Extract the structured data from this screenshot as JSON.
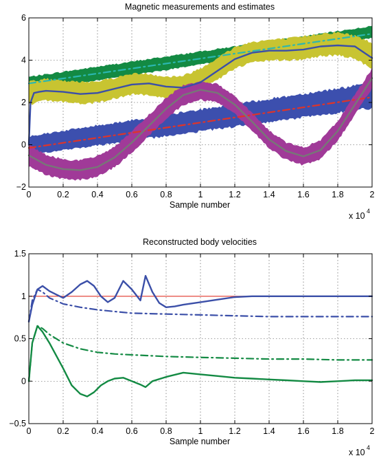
{
  "chart_data": [
    {
      "type": "line",
      "title": "Magnetic measurements and estimates",
      "xlabel": "Sample number",
      "ylabel": "",
      "x_multiplier_label": "x 10",
      "x_multiplier_exponent": "4",
      "xlim": [
        0,
        2
      ],
      "ylim": [
        -2,
        6
      ],
      "xticks": [
        0,
        0.2,
        0.4,
        0.6,
        0.8,
        1,
        1.2,
        1.4,
        1.6,
        1.8,
        2
      ],
      "xtick_labels": [
        "0",
        "0.2",
        "0.4",
        "0.6",
        "0.8",
        "1",
        "1.2",
        "1.4",
        "1.6",
        "1.8",
        "2"
      ],
      "yticks": [
        -2,
        0,
        2,
        4,
        6
      ],
      "ytick_labels": [
        "−2",
        "0",
        "2",
        "4",
        "6"
      ],
      "grid": true,
      "bands": [
        {
          "color": "#138a43",
          "x": [
            0,
            2
          ],
          "lower": [
            2.55,
            5.05
          ],
          "upper": [
            3.2,
            5.6
          ]
        },
        {
          "color": "#c8c431",
          "x": [
            0,
            0.1,
            0.2,
            0.3,
            0.4,
            0.5,
            0.6,
            0.7,
            0.8,
            0.9,
            1.0,
            1.1,
            1.2,
            1.3,
            1.4,
            1.5,
            1.6,
            1.7,
            1.8,
            1.9,
            2.0
          ],
          "lower": [
            1.9,
            2.1,
            2.05,
            1.95,
            2.0,
            2.2,
            2.4,
            2.35,
            2.2,
            2.25,
            2.6,
            3.1,
            3.6,
            3.9,
            4.0,
            4.0,
            4.05,
            4.2,
            4.25,
            4.1,
            3.6
          ],
          "upper": [
            3.0,
            3.1,
            3.0,
            2.95,
            3.0,
            3.15,
            3.35,
            3.35,
            3.2,
            3.25,
            3.6,
            4.1,
            4.6,
            4.85,
            4.95,
            5.0,
            5.1,
            5.25,
            5.3,
            5.15,
            4.8
          ]
        },
        {
          "color": "#3c4fae",
          "x": [
            0,
            2
          ],
          "lower": [
            -0.45,
            1.75
          ],
          "upper": [
            0.4,
            2.9
          ]
        },
        {
          "color": "#a03a98",
          "x": [
            0,
            0.1,
            0.2,
            0.3,
            0.4,
            0.5,
            0.6,
            0.7,
            0.8,
            0.9,
            1.0,
            1.1,
            1.2,
            1.3,
            1.4,
            1.5,
            1.6,
            1.7,
            1.8,
            1.9,
            2.0
          ],
          "lower": [
            -1.0,
            -1.4,
            -1.6,
            -1.65,
            -1.5,
            -1.05,
            -0.35,
            0.45,
            1.25,
            1.9,
            2.15,
            2.0,
            1.5,
            0.7,
            -0.15,
            -0.7,
            -0.95,
            -0.65,
            0.2,
            1.45,
            2.7
          ],
          "upper": [
            0.0,
            -0.5,
            -0.7,
            -0.75,
            -0.55,
            -0.1,
            0.6,
            1.4,
            2.2,
            2.8,
            3.0,
            2.85,
            2.3,
            1.5,
            0.65,
            0.1,
            -0.15,
            0.2,
            1.1,
            2.35,
            3.6
          ]
        }
      ],
      "series": [
        {
          "color": "#2bb7b0",
          "style": "dashdot",
          "x": [
            0,
            2
          ],
          "y": [
            2.9,
            5.25
          ]
        },
        {
          "color": "#e03428",
          "style": "dashdot",
          "x": [
            0,
            2
          ],
          "y": [
            -0.15,
            2.25
          ]
        },
        {
          "color": "#3b4fa8",
          "style": "solid",
          "x": [
            0,
            0.01,
            0.03,
            0.06,
            0.1,
            0.2,
            0.3,
            0.4,
            0.5,
            0.6,
            0.7,
            0.8,
            0.9,
            1.0,
            1.1,
            1.2,
            1.3,
            1.4,
            1.5,
            1.6,
            1.7,
            1.8,
            1.9,
            2.0
          ],
          "y": [
            0.0,
            2.0,
            2.45,
            2.5,
            2.55,
            2.5,
            2.4,
            2.45,
            2.65,
            2.85,
            2.9,
            2.75,
            2.7,
            2.95,
            3.5,
            4.05,
            4.35,
            4.45,
            4.45,
            4.5,
            4.65,
            4.7,
            4.65,
            4.1
          ]
        },
        {
          "color": "#777777",
          "style": "solid",
          "x": [
            0,
            0.1,
            0.2,
            0.3,
            0.4,
            0.5,
            0.6,
            0.7,
            0.8,
            0.9,
            1.0,
            1.1,
            1.2,
            1.3,
            1.4,
            1.5,
            1.6,
            1.7,
            1.8,
            1.9,
            2.0
          ],
          "y": [
            -0.5,
            -0.95,
            -1.15,
            -1.2,
            -1.05,
            -0.6,
            0.1,
            0.9,
            1.7,
            2.35,
            2.6,
            2.45,
            1.9,
            1.1,
            0.25,
            -0.3,
            -0.55,
            -0.25,
            0.65,
            1.9,
            3.15
          ]
        }
      ]
    },
    {
      "type": "line",
      "title": "Reconstructed body velocities",
      "xlabel": "Sample number",
      "ylabel": "",
      "x_multiplier_label": "x 10",
      "x_multiplier_exponent": "4",
      "xlim": [
        0,
        2
      ],
      "ylim": [
        -0.5,
        1.5
      ],
      "xticks": [
        0,
        0.2,
        0.4,
        0.6,
        0.8,
        1,
        1.2,
        1.4,
        1.6,
        1.8,
        2
      ],
      "xtick_labels": [
        "0",
        "0.2",
        "0.4",
        "0.6",
        "0.8",
        "1",
        "1.2",
        "1.4",
        "1.6",
        "1.8",
        "2"
      ],
      "yticks": [
        -0.5,
        0,
        0.5,
        1,
        1.5
      ],
      "ytick_labels": [
        "−0.5",
        "0",
        "0.5",
        "1",
        "1.5"
      ],
      "grid": true,
      "series": [
        {
          "color": "#e03428",
          "style": "solid",
          "x": [
            0,
            2
          ],
          "y": [
            1.0,
            1.0
          ]
        },
        {
          "color": "#3b4fa8",
          "style": "solid",
          "x": [
            0,
            0.02,
            0.05,
            0.08,
            0.12,
            0.16,
            0.2,
            0.25,
            0.3,
            0.34,
            0.38,
            0.42,
            0.46,
            0.5,
            0.55,
            0.6,
            0.65,
            0.68,
            0.72,
            0.76,
            0.8,
            0.85,
            0.9,
            1.0,
            1.1,
            1.2,
            1.3,
            1.4,
            1.5,
            1.6,
            1.7,
            1.8,
            1.9,
            2.0
          ],
          "y": [
            0.7,
            0.9,
            1.08,
            1.12,
            1.06,
            1.02,
            0.98,
            1.05,
            1.14,
            1.18,
            1.12,
            1.0,
            0.93,
            0.98,
            1.18,
            1.08,
            0.95,
            1.24,
            1.05,
            0.92,
            0.87,
            0.88,
            0.9,
            0.93,
            0.96,
            0.99,
            1.0,
            1.0,
            1.0,
            1.0,
            1.0,
            1.0,
            1.0,
            1.0
          ]
        },
        {
          "color": "#3b4fa8",
          "style": "dashdot",
          "x": [
            0,
            0.02,
            0.05,
            0.08,
            0.12,
            0.2,
            0.3,
            0.4,
            0.5,
            0.6,
            0.8,
            1.0,
            1.2,
            1.4,
            1.6,
            1.8,
            2.0
          ],
          "y": [
            0.7,
            0.95,
            1.08,
            1.05,
            0.98,
            0.91,
            0.87,
            0.84,
            0.82,
            0.8,
            0.79,
            0.78,
            0.77,
            0.76,
            0.76,
            0.76,
            0.76
          ]
        },
        {
          "color": "#138a43",
          "style": "dashdot",
          "x": [
            0,
            0.02,
            0.05,
            0.08,
            0.12,
            0.2,
            0.3,
            0.4,
            0.5,
            0.6,
            0.8,
            1.0,
            1.2,
            1.4,
            1.6,
            1.8,
            2.0
          ],
          "y": [
            0.0,
            0.45,
            0.65,
            0.62,
            0.55,
            0.45,
            0.38,
            0.34,
            0.32,
            0.31,
            0.29,
            0.28,
            0.27,
            0.26,
            0.26,
            0.25,
            0.25
          ]
        },
        {
          "color": "#138a43",
          "style": "solid",
          "x": [
            0,
            0.02,
            0.05,
            0.08,
            0.12,
            0.16,
            0.2,
            0.25,
            0.3,
            0.34,
            0.38,
            0.42,
            0.46,
            0.5,
            0.55,
            0.6,
            0.65,
            0.68,
            0.72,
            0.8,
            0.9,
            1.0,
            1.1,
            1.2,
            1.3,
            1.4,
            1.5,
            1.6,
            1.7,
            1.8,
            1.9,
            2.0
          ],
          "y": [
            0.0,
            0.45,
            0.65,
            0.58,
            0.45,
            0.3,
            0.15,
            -0.05,
            -0.15,
            -0.18,
            -0.13,
            -0.05,
            0.0,
            0.03,
            0.04,
            0.0,
            -0.04,
            -0.07,
            0.0,
            0.05,
            0.1,
            0.08,
            0.06,
            0.04,
            0.03,
            0.02,
            0.01,
            0.0,
            -0.01,
            0.0,
            0.01,
            0.01
          ]
        }
      ]
    }
  ]
}
